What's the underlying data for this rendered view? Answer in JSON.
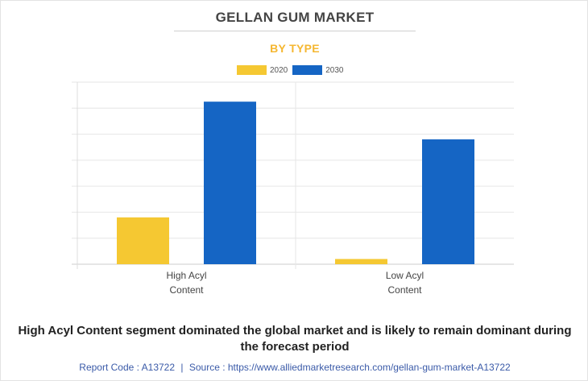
{
  "header": {
    "title": "GELLAN GUM MARKET",
    "subtitle": "BY TYPE"
  },
  "colors": {
    "series_2020": "#f5c832",
    "series_2030": "#1565c4",
    "grid": "#e6e6e6"
  },
  "chart_data": {
    "type": "bar",
    "categories": [
      [
        "High Acyl",
        "Content"
      ],
      [
        "Low Acyl",
        "Content"
      ]
    ],
    "series": [
      {
        "name": "2020",
        "values": [
          18,
          2
        ]
      },
      {
        "name": "2030",
        "values": [
          62.5,
          48
        ]
      }
    ],
    "ylim": [
      0,
      70
    ],
    "grid": true,
    "legend": "top-center",
    "xlabel": "",
    "ylabel": ""
  },
  "footer": {
    "note": "High Acyl Content segment dominated the global market and is likely to remain dominant during the forecast period",
    "report_code": "Report Code : A13722",
    "separator": "|",
    "source": "Source : https://www.alliedmarketresearch.com/gellan-gum-market-A13722"
  }
}
